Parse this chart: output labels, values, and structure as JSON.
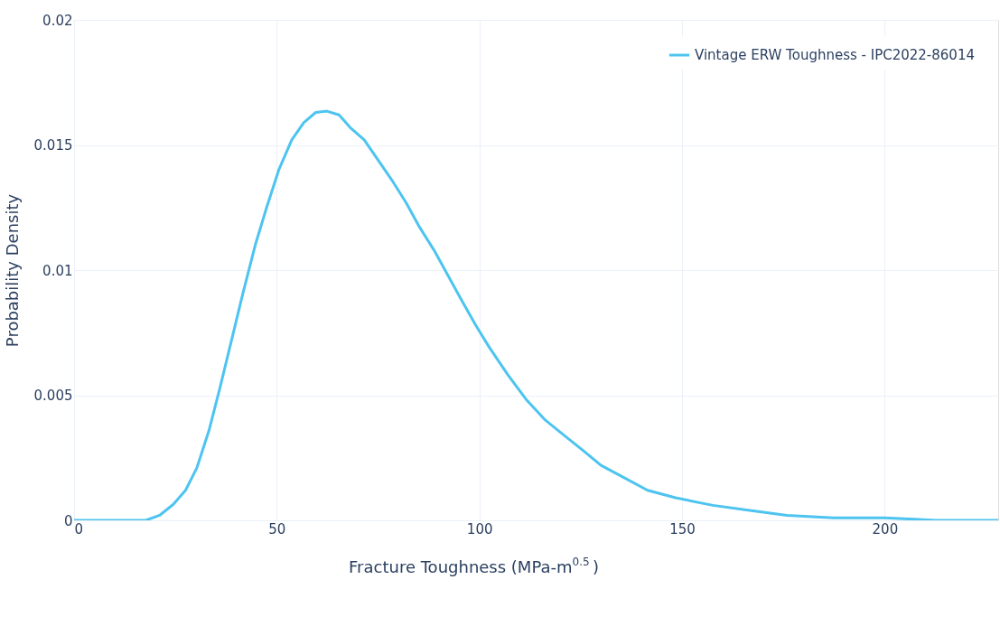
{
  "chart_data": {
    "type": "line",
    "xlabel": "Fracture Toughness (MPa-m$^{0.5}$)",
    "ylabel": "Probability Density",
    "xlim": [
      0,
      228
    ],
    "xticks": [
      0,
      50,
      100,
      150,
      200
    ],
    "ylim": [
      0,
      0.02
    ],
    "yticks": [
      0,
      0.005,
      0.01,
      0.015,
      0.02
    ],
    "grid": true,
    "legend": "top right",
    "marker": "none",
    "line_style": "solid",
    "series": [
      {
        "name": "Vintage ERW Toughness - IPC2022-86014",
        "color": "#4dc4f0",
        "x": [
          0,
          10,
          17.7,
          21.1,
          24.5,
          27.5,
          30.3,
          33.3,
          36,
          39,
          41.7,
          44.7,
          47.5,
          50.5,
          53.7,
          56.7,
          59.6,
          62.4,
          65.4,
          68.1,
          71.6,
          75,
          78.4,
          81.9,
          85.3,
          88.8,
          92.2,
          95.6,
          99.1,
          102.5,
          107.1,
          111.7,
          116.3,
          120.9,
          125.5,
          130,
          134.6,
          141.5,
          148.4,
          157.6,
          166.7,
          175.9,
          187.4,
          200,
          212.6,
          228
        ],
        "values": [
          0,
          0,
          0,
          0.0002,
          0.00064,
          0.0012,
          0.0021,
          0.0036,
          0.0053,
          0.0073,
          0.0091,
          0.011,
          0.0125,
          0.014,
          0.0152,
          0.0159,
          0.0163,
          0.01635,
          0.0162,
          0.0157,
          0.0152,
          0.0144,
          0.0136,
          0.0127,
          0.0117,
          0.0108,
          0.0098,
          0.0088,
          0.0078,
          0.0069,
          0.0058,
          0.0048,
          0.004,
          0.0034,
          0.0028,
          0.0022,
          0.0018,
          0.0012,
          0.0009,
          0.0006,
          0.0004,
          0.0002,
          0.0001,
          0.0001,
          0,
          0
        ]
      }
    ]
  }
}
